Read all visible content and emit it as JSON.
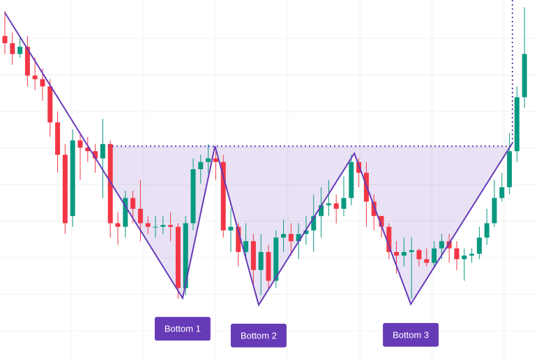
{
  "chart_data": {
    "type": "candlestick",
    "up_color": "#089981",
    "down_color": "#f23645",
    "ylim": [
      0,
      100
    ],
    "grid": true,
    "open": [
      90,
      88,
      85,
      87,
      79,
      78,
      76,
      66,
      57,
      40,
      61,
      59,
      58,
      56,
      60,
      38,
      37,
      45,
      42,
      38,
      37,
      37,
      37.5,
      37,
      20,
      38,
      53,
      55,
      56,
      55,
      36,
      37,
      30,
      33,
      25,
      30,
      22,
      34,
      35,
      33,
      35,
      36,
      40,
      43,
      43.5,
      42,
      45,
      55,
      52,
      44,
      40,
      37,
      30,
      29,
      30,
      30.5,
      28,
      27,
      31,
      33,
      31,
      28,
      29,
      29.5,
      34,
      38,
      45,
      48,
      58,
      73
    ],
    "high": [
      97,
      91,
      90,
      90,
      84,
      81,
      78,
      69,
      60,
      64,
      63,
      62,
      60,
      67,
      61,
      41,
      47,
      47,
      50,
      40,
      40,
      40,
      41,
      38,
      40,
      56,
      57,
      60,
      59,
      57,
      42,
      38,
      38,
      35,
      35,
      32,
      36,
      39,
      38,
      38,
      40,
      46,
      48,
      50,
      46,
      51,
      57,
      56,
      55,
      46,
      40,
      38,
      33,
      34,
      34,
      31,
      31,
      33,
      35,
      35,
      33,
      31,
      31,
      37,
      42,
      50,
      52,
      63,
      76,
      98
    ],
    "low": [
      85,
      82,
      84,
      76,
      75,
      72,
      62,
      52,
      35,
      37,
      50,
      55,
      52,
      45,
      34,
      32,
      34,
      38,
      33,
      35,
      34,
      35,
      33,
      17,
      18,
      36,
      49,
      52,
      50,
      34,
      30,
      26,
      28,
      21,
      18,
      20,
      20,
      30,
      29,
      28,
      32,
      30,
      34,
      40,
      38,
      40,
      43,
      48,
      37,
      36,
      34,
      28,
      24,
      26,
      17,
      26,
      26,
      26,
      28,
      27,
      25,
      22,
      27,
      28,
      32,
      37,
      44,
      46,
      55,
      70
    ],
    "close": [
      88,
      85,
      87,
      79,
      78,
      76,
      66,
      57,
      38,
      61,
      59,
      58,
      56,
      60,
      38,
      37,
      45,
      42,
      38,
      37,
      37,
      37.5,
      37,
      20,
      38,
      53,
      55,
      56,
      55,
      36,
      37,
      30,
      33,
      25,
      30,
      22,
      34,
      35,
      33,
      35,
      36,
      40,
      43,
      43.5,
      42,
      45,
      55,
      52,
      44,
      40,
      37,
      30,
      29,
      30,
      30.5,
      28,
      27,
      31,
      33,
      31,
      28,
      29,
      29.5,
      34,
      38,
      45,
      48,
      58,
      73,
      85
    ],
    "pattern": {
      "color": "#673ab7",
      "points": [
        {
          "x": 0,
          "y": 96.5
        },
        {
          "x": 23.6,
          "y": 17.2,
          "label": "Bottom 1"
        },
        {
          "x": 27.9,
          "y": 59.4
        },
        {
          "x": 33.7,
          "y": 15.3,
          "label": "Bottom 2"
        },
        {
          "x": 46.4,
          "y": 57.4
        },
        {
          "x": 53.9,
          "y": 15.5,
          "label": "Bottom 3"
        },
        {
          "x": 67.4,
          "y": 60.3
        }
      ],
      "neckline": {
        "y": 59.4,
        "x": [
          13.7,
          67.4
        ]
      }
    }
  }
}
